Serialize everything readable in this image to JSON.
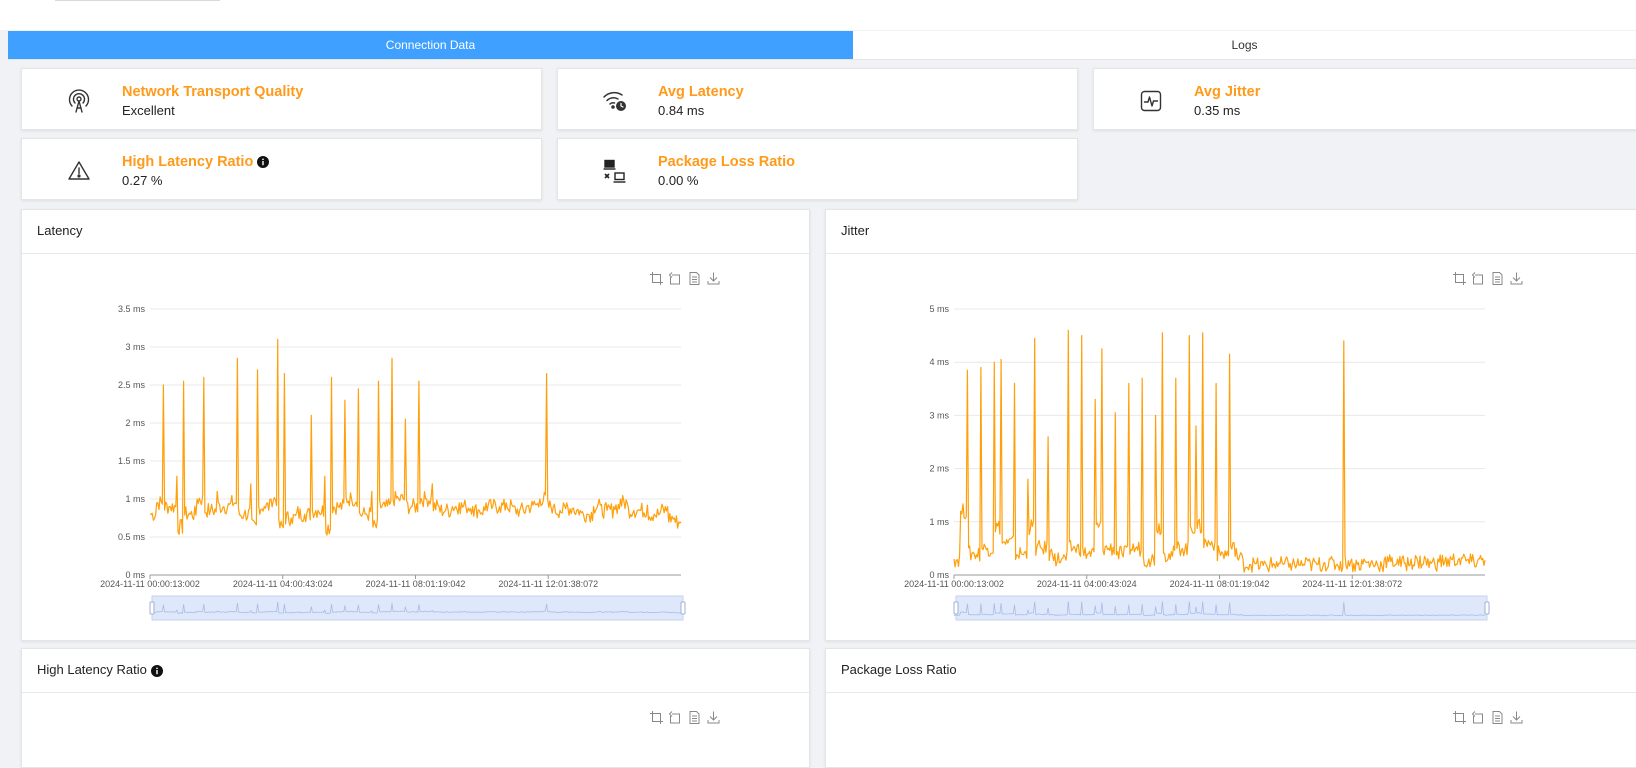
{
  "tabs": [
    {
      "label": "Connection Data",
      "active": true
    },
    {
      "label": "Logs",
      "active": false
    }
  ],
  "stats": {
    "transport_quality": {
      "title": "Network Transport Quality",
      "value": "Excellent",
      "icon": "antenna-icon"
    },
    "avg_latency": {
      "title": "Avg Latency",
      "value": "0.84 ms",
      "icon": "wifi-clock-icon"
    },
    "avg_jitter": {
      "title": "Avg Jitter",
      "value": "0.35 ms",
      "icon": "pulse-icon"
    },
    "high_latency_ratio": {
      "title": "High Latency Ratio",
      "value": "0.27 %",
      "icon": "warning-icon"
    },
    "package_loss_ratio": {
      "title": "Package Loss Ratio",
      "value": "0.00 %",
      "icon": "network-devices-icon"
    }
  },
  "panels": {
    "latency": {
      "title": "Latency"
    },
    "jitter": {
      "title": "Jitter"
    },
    "high_latency_ratio": {
      "title": "High Latency Ratio"
    },
    "package_loss_ratio": {
      "title": "Package Loss Ratio"
    }
  },
  "colors": {
    "accent": "#ff9a1a",
    "tab_active": "#40a0ff",
    "line": "#ff9f0a",
    "zoom_fill": "#dfe8fb"
  },
  "chart_data": [
    {
      "type": "line",
      "title": "Latency",
      "unit": "ms",
      "ylim": [
        0,
        3.5
      ],
      "yticks": [
        "0 ms",
        "0.5 ms",
        "1 ms",
        "1.5 ms",
        "2 ms",
        "2.5 ms",
        "3 ms",
        "3.5 ms"
      ],
      "x_tick_labels": [
        "2024-11-11 00:00:13:002",
        "2024-11-11 04:00:43:024",
        "2024-11-11 08:01:19:042",
        "2024-11-11 12:01:38:072"
      ],
      "x_range_hours": [
        0,
        16
      ],
      "series": [
        {
          "values": [
            0.8,
            0.95,
            2.5,
            0.9,
            1.3,
            2.55,
            0.8,
            1.0,
            2.6,
            0.85,
            1.1,
            0.9,
            0.95,
            2.85,
            0.8,
            1.2,
            2.7,
            0.9,
            1.0,
            3.1,
            2.65,
            0.75,
            0.9,
            0.8,
            2.1,
            0.85,
            1.3,
            2.6,
            0.9,
            2.3,
            1.0,
            2.45,
            0.8,
            1.1,
            2.55,
            0.9,
            2.85,
            1.0,
            2.05,
            0.9,
            2.55,
            1.0,
            1.2,
            0.9,
            0.85,
            0.9,
            0.95,
            0.9,
            0.9,
            0.85,
            0.95,
            0.9,
            0.9,
            0.95,
            0.9,
            0.85,
            0.9,
            0.92,
            1.0,
            2.65,
            0.9,
            0.85,
            0.95,
            0.88,
            0.85,
            0.8,
            0.9,
            0.92,
            0.85,
            0.9,
            1.0,
            0.95,
            0.85,
            0.85,
            0.92,
            0.8,
            0.85,
            0.9,
            0.75,
            0.7
          ]
        }
      ]
    },
    {
      "type": "line",
      "title": "Jitter",
      "unit": "ms",
      "ylim": [
        0,
        5
      ],
      "yticks": [
        "0 ms",
        "1 ms",
        "2 ms",
        "3 ms",
        "4 ms",
        "5 ms"
      ],
      "x_tick_labels": [
        "2024-11-11 00:00:13:002",
        "2024-11-11 04:00:43:024",
        "2024-11-11 08:01:19:042",
        "2024-11-11 12:01:38:072"
      ],
      "x_range_hours": [
        0,
        16
      ],
      "series": [
        {
          "values": [
            0.3,
            1.2,
            3.85,
            0.4,
            3.9,
            0.5,
            4.0,
            4.05,
            0.6,
            3.6,
            0.4,
            1.8,
            4.45,
            0.5,
            2.6,
            0.4,
            0.3,
            4.6,
            0.5,
            4.5,
            0.4,
            3.3,
            4.25,
            0.5,
            3.05,
            0.4,
            3.6,
            0.5,
            3.7,
            0.3,
            3.0,
            4.55,
            0.4,
            3.7,
            0.5,
            4.5,
            2.8,
            4.55,
            0.6,
            3.6,
            0.4,
            4.15,
            0.5,
            0.3,
            0.2,
            0.22,
            0.18,
            0.2,
            0.25,
            0.2,
            0.22,
            0.2,
            0.2,
            0.25,
            0.2,
            0.22,
            0.3,
            0.2,
            4.4,
            0.25,
            0.2,
            0.3,
            0.22,
            0.2,
            0.28,
            0.25,
            0.3,
            0.22,
            0.3,
            0.25,
            0.35,
            0.22,
            0.3,
            0.25,
            0.3,
            0.28,
            0.35,
            0.25,
            0.3,
            0.28
          ]
        }
      ]
    }
  ]
}
